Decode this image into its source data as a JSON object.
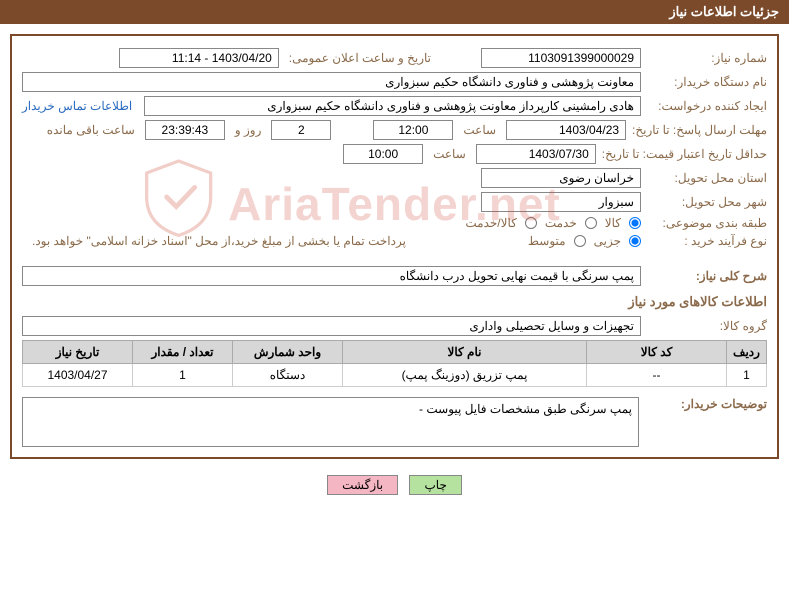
{
  "colors": {
    "header_bg": "#7b4a2a",
    "header_text": "#ffffff",
    "panel_border": "#7b4a2a",
    "label_text": "#8a6a4a",
    "link_text": "#2a6abf",
    "th_bg": "#d7d7d7",
    "btn_green": "#b6e2a0",
    "btn_pink": "#f3b6c2",
    "watermark": "rgba(200,60,40,0.22)"
  },
  "header": {
    "title": "جزئیات اطلاعات نیاز"
  },
  "labels": {
    "req_no": "شماره نیاز:",
    "announce": "تاریخ و ساعت اعلان عمومی:",
    "buyer_org": "نام دستگاه خریدار:",
    "creator": "ایجاد کننده درخواست:",
    "contact_link": "اطلاعات تماس خریدار",
    "reply_deadline": "مهلت ارسال پاسخ: تا تاریخ:",
    "time": "ساعت",
    "days_and": "روز و",
    "remaining": "ساعت باقی مانده",
    "price_validity": "حداقل تاریخ اعتبار قیمت: تا تاریخ:",
    "delivery_province": "استان محل تحویل:",
    "delivery_city": "شهر محل تحویل:",
    "category": "طبقه بندی موضوعی:",
    "cat_goods": "کالا",
    "cat_service": "خدمت",
    "cat_both": "کالا/خدمت",
    "process_type": "نوع فرآیند خرید :",
    "proc_partial": "جزیی",
    "proc_medium": "متوسط",
    "treasury_note": "پرداخت تمام یا بخشی از مبلغ خرید،از محل \"اسناد خزانه اسلامی\" خواهد بود.",
    "general_desc": "شرح کلی نیاز:",
    "goods_info": "اطلاعات کالاهای مورد نیاز",
    "goods_group": "گروه کالا:",
    "buyer_notes": "توضیحات خریدار:"
  },
  "fields": {
    "req_no": "1103091399000029",
    "announce_datetime": "1403/04/20 - 11:14",
    "buyer_org": "معاونت پژوهشی و فناوری دانشگاه حکیم سبزواری",
    "creator": "هادی رامشینی کارپرداز معاونت پژوهشی و فناوری دانشگاه حکیم سبزواری",
    "reply_date": "1403/04/23",
    "reply_time": "12:00",
    "days_left": "2",
    "time_left": "23:39:43",
    "validity_date": "1403/07/30",
    "validity_time": "10:00",
    "province": "خراسان رضوی",
    "city": "سبزوار",
    "general_desc": "پمپ سرنگی با قیمت نهایی تحویل درب دانشگاه",
    "goods_group": "تجهیزات و وسایل تحصیلی واداری",
    "buyer_notes": "پمپ سرنگی طبق مشخصات فایل پیوست -"
  },
  "radios": {
    "category_selected": "goods",
    "process_selected": "partial"
  },
  "table": {
    "columns": [
      "ردیف",
      "کد کالا",
      "نام کالا",
      "واحد شمارش",
      "تعداد / مقدار",
      "تاریخ نیاز"
    ],
    "rows": [
      {
        "no": "1",
        "code": "--",
        "name": "پمپ تزریق (دوزینگ پمپ)",
        "unit": "دستگاه",
        "qty": "1",
        "need_date": "1403/04/27"
      }
    ]
  },
  "buttons": {
    "print": "چاپ",
    "back": "بازگشت"
  },
  "watermark": "AriaTender.net"
}
